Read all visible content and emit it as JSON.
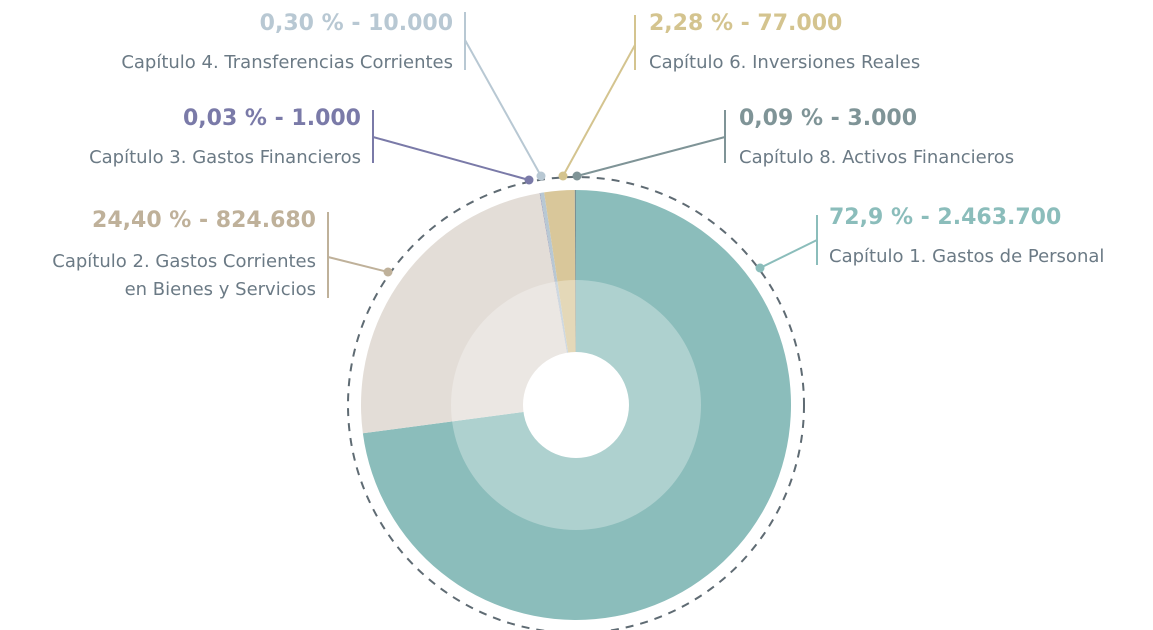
{
  "chart_data": {
    "type": "pie",
    "categories": [
      "Capítulo 1. Gastos de Personal",
      "Capítulo 2. Gastos Corrientes\nen Bienes y Servicios",
      "Capítulo 3. Gastos Financieros",
      "Capítulo 4. Transferencias Corrientes",
      "Capítulo 6. Inversiones Reales",
      "Capítulo 8. Activos Financieros"
    ],
    "values": [
      72.9,
      24.4,
      0.03,
      0.3,
      2.28,
      0.09
    ],
    "value_labels": [
      "72,9 % - 2.463.700",
      "24,40 % - 824.680",
      "0,03 % - 1.000",
      "0,30 % - 10.000",
      "2,28 % - 77.000",
      "0,09 % - 3.000"
    ],
    "colors": [
      "#8bbdbb",
      "#e3ddd7",
      "#7a7aa8",
      "#b8c8d3",
      "#d9c79a",
      "#7a9194"
    ],
    "label_colors": [
      "#8bbdbb",
      "#bfb19a",
      "#7a7aa8",
      "#b8c8d3",
      "#d4c48f",
      "#7f9497"
    ]
  }
}
